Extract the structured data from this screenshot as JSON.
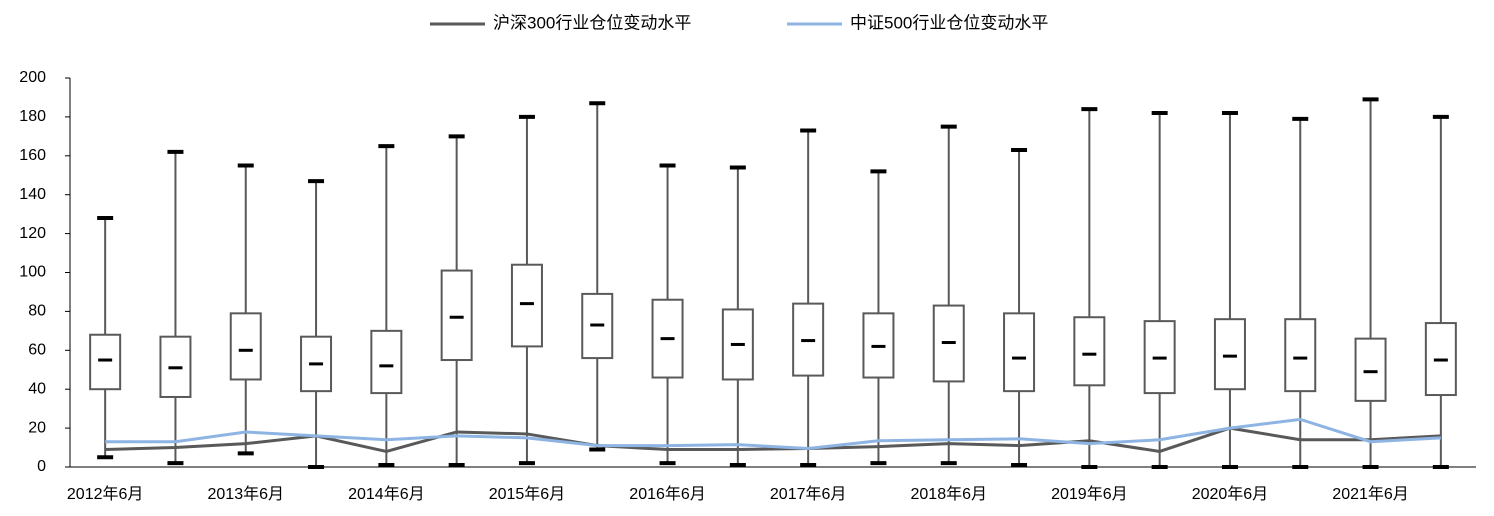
{
  "chart_data": {
    "type": "box",
    "categories": [
      "2012年6月",
      null,
      "2013年6月",
      null,
      "2014年6月",
      null,
      "2015年6月",
      null,
      "2016年6月",
      null,
      "2017年6月",
      null,
      "2018年6月",
      null,
      "2019年6月",
      null,
      "2020年6月",
      null,
      "2021年6月",
      null
    ],
    "boxes": {
      "min": [
        5,
        2,
        7,
        0,
        1,
        1,
        2,
        9,
        2,
        1,
        1,
        2,
        2,
        1,
        0,
        0,
        0,
        0,
        0,
        0
      ],
      "q1": [
        40,
        36,
        45,
        39,
        38,
        55,
        62,
        56,
        46,
        45,
        47,
        46,
        44,
        39,
        42,
        38,
        40,
        39,
        34,
        37
      ],
      "median": [
        55,
        51,
        60,
        53,
        52,
        77,
        84,
        73,
        66,
        63,
        65,
        62,
        64,
        56,
        58,
        56,
        57,
        56,
        49,
        55
      ],
      "q3": [
        68,
        67,
        79,
        67,
        70,
        101,
        104,
        89,
        86,
        81,
        84,
        79,
        83,
        79,
        77,
        75,
        76,
        76,
        66,
        74
      ],
      "max": [
        128,
        162,
        155,
        147,
        165,
        170,
        180,
        187,
        155,
        154,
        173,
        152,
        175,
        163,
        184,
        182,
        182,
        179,
        189,
        180
      ],
      "color": "#595959"
    },
    "series": [
      {
        "name": "沪深300行业仓位变动水平",
        "color": "#595959",
        "values": [
          9,
          10,
          12,
          16,
          8,
          18,
          17,
          11,
          9,
          9,
          9.5,
          10.5,
          12,
          11,
          13.5,
          8,
          20,
          14,
          14,
          16
        ]
      },
      {
        "name": "中证500行业仓位变动水平",
        "color": "#8eb4e3",
        "values": [
          13,
          13,
          18,
          16,
          14,
          16,
          15,
          11,
          11,
          11.5,
          9.5,
          13.5,
          14,
          14.5,
          12,
          14,
          20,
          24.5,
          13,
          15
        ]
      }
    ],
    "ylim": [
      0,
      200
    ],
    "yticks": [
      0,
      20,
      40,
      60,
      80,
      100,
      120,
      140,
      160,
      180,
      200
    ],
    "legend": "top"
  }
}
